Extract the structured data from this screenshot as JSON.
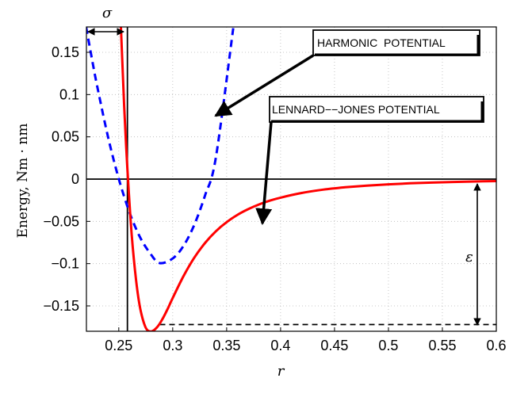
{
  "chart_data": {
    "type": "line",
    "xlabel": "r",
    "ylabel": "Energy, Nm · nm",
    "xlim": [
      0.22,
      0.6
    ],
    "ylim": [
      -0.18,
      0.18
    ],
    "x_ticks": [
      "0.25",
      "0.3",
      "0.35",
      "0.4",
      "0.45",
      "0.5",
      "0.55",
      "0.6"
    ],
    "y_ticks": [
      "-0.15",
      "-0.1",
      "-0.05",
      "0",
      "0.05",
      "0.1",
      "0.15"
    ],
    "grid": true,
    "series": [
      {
        "name": "LENNARD--JONES POTENTIAL",
        "color": "#ff0000",
        "style": "solid",
        "x": [
          0.252,
          0.255,
          0.258,
          0.262,
          0.266,
          0.27,
          0.275,
          0.28,
          0.285,
          0.29,
          0.295,
          0.3,
          0.31,
          0.32,
          0.33,
          0.34,
          0.35,
          0.36,
          0.37,
          0.38,
          0.39,
          0.4,
          0.42,
          0.44,
          0.46,
          0.48,
          0.5,
          0.52,
          0.54,
          0.56,
          0.58,
          0.6
        ],
        "y": [
          0.1802,
          0.0865,
          0.0117,
          -0.0658,
          -0.1193,
          -0.1538,
          -0.1758,
          -0.1802,
          -0.176,
          -0.1667,
          -0.1544,
          -0.1407,
          -0.1148,
          -0.0929,
          -0.0755,
          -0.0617,
          -0.0509,
          -0.0423,
          -0.0355,
          -0.03,
          -0.0255,
          -0.0219,
          -0.0163,
          -0.0124,
          -0.0097,
          -0.0077,
          -0.0062,
          -0.005,
          -0.0041,
          -0.0034,
          -0.0028,
          -0.0023
        ]
      },
      {
        "name": "HARMONIC POTENTIAL",
        "color": "#0000ff",
        "style": "dashed",
        "x": [
          0.2197,
          0.225,
          0.23,
          0.24,
          0.25,
          0.26,
          0.27,
          0.28,
          0.288,
          0.3,
          0.31,
          0.32,
          0.33,
          0.34,
          0.3563
        ],
        "y": [
          0.18,
          0.143,
          0.1098,
          0.0501,
          0.0003,
          -0.0396,
          -0.0695,
          -0.0894,
          -0.0994,
          -0.0939,
          -0.079,
          -0.054,
          -0.0191,
          0.0257,
          0.18
        ]
      }
    ],
    "horizontal_line": {
      "y": 0,
      "color": "#000000"
    },
    "well_depth_line": {
      "y": -0.172,
      "x_from": 0.288,
      "x_to": 0.6,
      "style": "dashed",
      "color": "#000000"
    },
    "sigma_line": {
      "x": 0.258,
      "color": "#000000"
    },
    "annotations": [
      {
        "text": "HARMONIC  POTENTIAL",
        "type": "callout-box",
        "points_to": [
          0.34,
          0.075
        ]
      },
      {
        "text": "LENNARD−−JONES POTENTIAL",
        "type": "callout-box",
        "points_to": [
          0.386,
          -0.055
        ]
      },
      {
        "text": "σ",
        "type": "span",
        "x_from": 0.222,
        "x_to": 0.258,
        "y": 0.173
      },
      {
        "text": "ε",
        "type": "span",
        "x": 0.583,
        "y_from": 0,
        "y_to": -0.172
      }
    ]
  },
  "labels": {
    "harmonic": "HARMONIC  POTENTIAL",
    "lj": "LENNARD−−JONES POTENTIAL",
    "sigma": "σ",
    "epsilon": "ε"
  }
}
